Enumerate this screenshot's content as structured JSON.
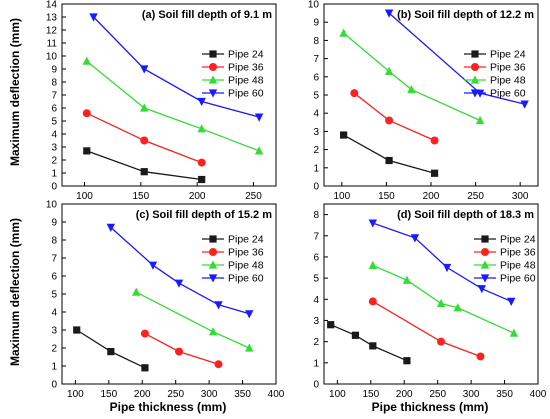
{
  "figure": {
    "ylabel": "Maximum deflection (mm)",
    "xlabel": "Pipe thickness (mm)"
  },
  "colors": {
    "Pipe 24": "#1a1a1a",
    "Pipe 36": "#ff2020",
    "Pipe 48": "#33dd33",
    "Pipe 60": "#1a1aff"
  },
  "chart_data": [
    {
      "type": "line",
      "title": "(a) Soil fill depth of 9.1 m",
      "xlim": [
        80,
        270
      ],
      "ylim": [
        0,
        14
      ],
      "xticks": [
        100,
        150,
        200,
        250
      ],
      "yticks": [
        0,
        1,
        2,
        3,
        4,
        5,
        6,
        7,
        8,
        9,
        10,
        11,
        12,
        13,
        14
      ],
      "legend_position": "top-right",
      "series": [
        {
          "name": "Pipe 24",
          "x": [
            102,
            153,
            204
          ],
          "y": [
            2.7,
            1.1,
            0.5
          ]
        },
        {
          "name": "Pipe 36",
          "x": [
            102,
            153,
            204
          ],
          "y": [
            5.6,
            3.5,
            1.8
          ]
        },
        {
          "name": "Pipe 48",
          "x": [
            102,
            153,
            204,
            255
          ],
          "y": [
            9.6,
            6.0,
            4.4,
            2.7
          ]
        },
        {
          "name": "Pipe 60",
          "x": [
            108,
            153,
            204,
            255
          ],
          "y": [
            13.0,
            9.0,
            6.5,
            5.3
          ]
        }
      ]
    },
    {
      "type": "line",
      "title": "(b) Soil fill depth of 12.2 m",
      "xlim": [
        80,
        320
      ],
      "ylim": [
        0,
        10
      ],
      "xticks": [
        100,
        150,
        200,
        250,
        300
      ],
      "yticks": [
        0,
        1,
        2,
        3,
        4,
        5,
        6,
        7,
        8,
        9,
        10
      ],
      "legend_position": "top-right",
      "series": [
        {
          "name": "Pipe 24",
          "x": [
            102,
            153,
            204
          ],
          "y": [
            2.8,
            1.4,
            0.7
          ]
        },
        {
          "name": "Pipe 36",
          "x": [
            114,
            153,
            204
          ],
          "y": [
            5.1,
            3.6,
            2.5
          ]
        },
        {
          "name": "Pipe 48",
          "x": [
            102,
            153,
            178,
            255
          ],
          "y": [
            8.4,
            6.3,
            5.3,
            3.6
          ]
        },
        {
          "name": "Pipe 60",
          "x": [
            153,
            255,
            305
          ],
          "y": [
            9.5,
            5.1,
            4.5
          ]
        }
      ]
    },
    {
      "type": "line",
      "title": "(c) Soil fill depth of 15.2 m",
      "xlim": [
        80,
        400
      ],
      "ylim": [
        0,
        10
      ],
      "xticks": [
        100,
        150,
        200,
        250,
        300,
        350,
        400
      ],
      "yticks": [
        0,
        1,
        2,
        3,
        4,
        5,
        6,
        7,
        8,
        9,
        10
      ],
      "legend_position": "right",
      "series": [
        {
          "name": "Pipe 24",
          "x": [
            102,
            153,
            204
          ],
          "y": [
            3.0,
            1.8,
            0.9
          ]
        },
        {
          "name": "Pipe 36",
          "x": [
            204,
            255,
            314
          ],
          "y": [
            2.8,
            1.8,
            1.1
          ]
        },
        {
          "name": "Pipe 48",
          "x": [
            191,
            306,
            360
          ],
          "y": [
            5.1,
            2.9,
            2.0
          ]
        },
        {
          "name": "Pipe 60",
          "x": [
            153,
            216,
            255,
            314,
            360
          ],
          "y": [
            8.7,
            6.6,
            5.6,
            4.4,
            3.9
          ]
        }
      ]
    },
    {
      "type": "line",
      "title": "(d) Soil fill depth of 18.3 m",
      "xlim": [
        80,
        400
      ],
      "ylim": [
        0,
        8.5
      ],
      "xticks": [
        100,
        150,
        200,
        250,
        300,
        350,
        400
      ],
      "yticks": [
        0,
        1,
        2,
        3,
        4,
        5,
        6,
        7,
        8
      ],
      "legend_position": "right",
      "series": [
        {
          "name": "Pipe 24",
          "x": [
            90,
            127,
            153,
            204
          ],
          "y": [
            2.8,
            2.3,
            1.8,
            1.1
          ]
        },
        {
          "name": "Pipe 36",
          "x": [
            153,
            255,
            314
          ],
          "y": [
            3.9,
            2.0,
            1.3
          ]
        },
        {
          "name": "Pipe 48",
          "x": [
            153,
            204,
            255,
            280,
            364
          ],
          "y": [
            5.6,
            4.9,
            3.8,
            3.6,
            2.4
          ]
        },
        {
          "name": "Pipe 60",
          "x": [
            153,
            216,
            264,
            316,
            360
          ],
          "y": [
            7.6,
            6.9,
            5.5,
            4.5,
            3.9
          ]
        }
      ]
    }
  ]
}
